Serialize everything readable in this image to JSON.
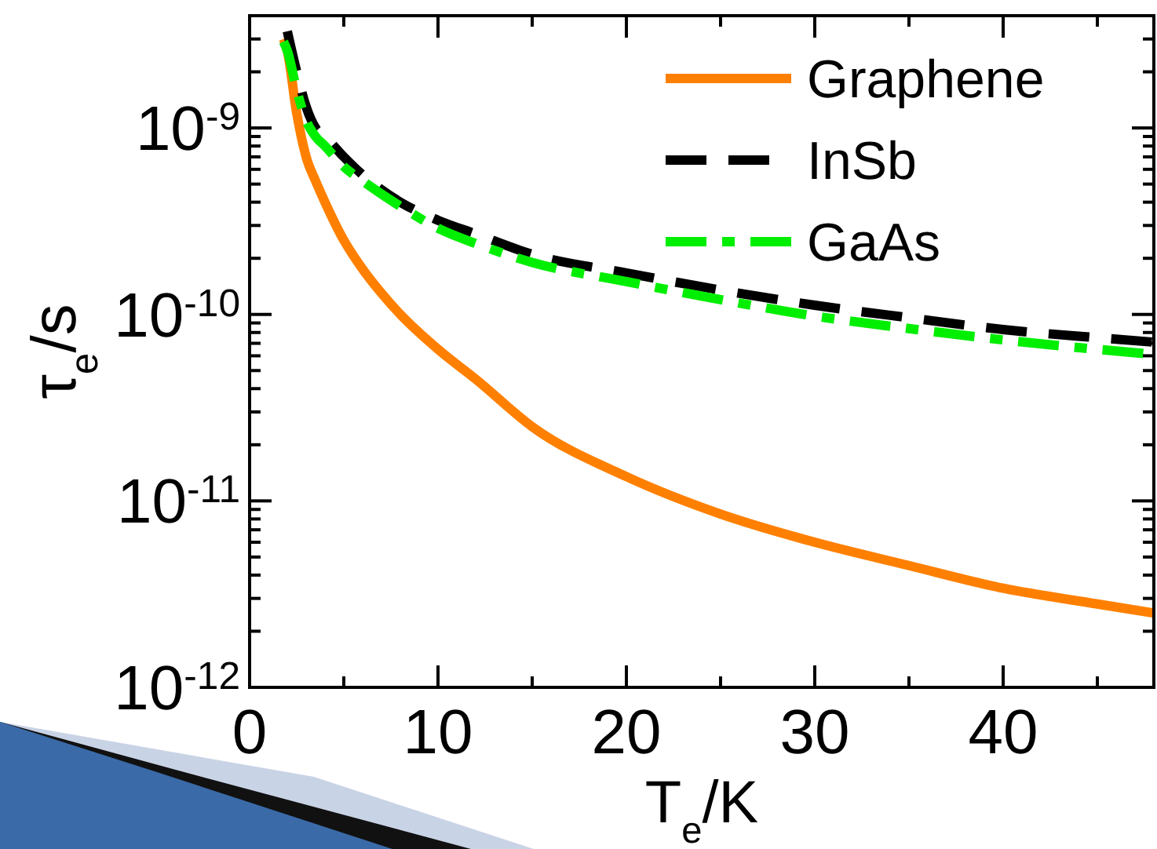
{
  "chart_data": {
    "type": "line",
    "xlabel": "T$_{e}$/K",
    "ylabel": "τ$_{e}$/s",
    "x": [
      1.8,
      2,
      2.5,
      3,
      3.5,
      4,
      5,
      6,
      7,
      8,
      10,
      12,
      15,
      20,
      25,
      30,
      35,
      40,
      45,
      48
    ],
    "series": [
      {
        "name": "Graphene",
        "color": "#ff8000",
        "line_style": "solid",
        "values": [
          3e-09,
          2.6e-09,
          1.2e-09,
          7e-10,
          5.2e-10,
          4e-10,
          2.5e-10,
          1.75e-10,
          1.3e-10,
          1e-10,
          6.5e-11,
          4.5e-11,
          2.5e-11,
          1.35e-11,
          8.5e-12,
          6e-12,
          4.5e-12,
          3.4e-12,
          2.8e-12,
          2.5e-12
        ]
      },
      {
        "name": "InSb",
        "color": "#000000",
        "line_style": "dashed",
        "x": [
          2,
          2.5,
          3,
          3.5,
          4,
          5,
          6,
          8,
          10,
          12,
          15,
          20,
          25,
          30,
          35,
          40,
          45,
          48
        ],
        "values": [
          3.3e-09,
          2e-09,
          1.3e-09,
          1e-09,
          9e-10,
          7e-10,
          5.6e-10,
          4e-10,
          3.2e-10,
          2.7e-10,
          2.1e-10,
          1.67e-10,
          1.35e-10,
          1.12e-10,
          9.6e-11,
          8.3e-11,
          7.5e-11,
          7.1e-11
        ]
      },
      {
        "name": "GaAs",
        "color": "#00ee00",
        "line_style": "dashdot",
        "x": [
          1.8,
          2,
          2.5,
          3,
          3.5,
          4,
          5,
          6,
          8,
          10,
          12,
          15,
          20,
          25,
          30,
          35,
          40,
          45,
          48
        ],
        "values": [
          2.9e-09,
          2.6e-09,
          1.6e-09,
          1.1e-09,
          9e-10,
          8e-10,
          6.2e-10,
          5.2e-10,
          3.8e-10,
          2.9e-10,
          2.4e-10,
          1.9e-10,
          1.5e-10,
          1.2e-10,
          9.8e-11,
          8.4e-11,
          7.3e-11,
          6.5e-11,
          6.1e-11
        ]
      }
    ],
    "log": "y",
    "legend": "top right",
    "grid": false,
    "xlim": [
      0,
      48
    ],
    "xticks": [
      0,
      {
        "value": 5,
        "label": null
      },
      10,
      {
        "value": 15,
        "label": null
      },
      20,
      {
        "value": 25,
        "label": null
      },
      30,
      {
        "value": 35,
        "label": null
      },
      40,
      {
        "value": 45,
        "label": null
      }
    ],
    "ylim": [
      1e-12,
      4e-09
    ],
    "yticks": [
      {
        "value": 1e-12,
        "label": "10$^{-12}$"
      },
      {
        "value": 2e-12,
        "label": null
      },
      {
        "value": 3e-12,
        "label": null
      },
      {
        "value": 4e-12,
        "label": null
      },
      {
        "value": 5e-12,
        "label": null
      },
      {
        "value": 6e-12,
        "label": null
      },
      {
        "value": 7e-12,
        "label": null
      },
      {
        "value": 8e-12,
        "label": null
      },
      {
        "value": 9e-12,
        "label": null
      },
      {
        "value": 1e-11,
        "label": "10$^{-11}$"
      },
      {
        "value": 2e-11,
        "label": null
      },
      {
        "value": 3e-11,
        "label": null
      },
      {
        "value": 4e-11,
        "label": null
      },
      {
        "value": 5e-11,
        "label": null
      },
      {
        "value": 6e-11,
        "label": null
      },
      {
        "value": 7e-11,
        "label": null
      },
      {
        "value": 8e-11,
        "label": null
      },
      {
        "value": 9e-11,
        "label": null
      },
      {
        "value": 1e-10,
        "label": "10$^{-10}$"
      },
      {
        "value": 2e-10,
        "label": null
      },
      {
        "value": 3e-10,
        "label": null
      },
      {
        "value": 4e-10,
        "label": null
      },
      {
        "value": 5e-10,
        "label": null
      },
      {
        "value": 6e-10,
        "label": null
      },
      {
        "value": 7e-10,
        "label": null
      },
      {
        "value": 8e-10,
        "label": null
      },
      {
        "value": 9e-10,
        "label": null
      },
      {
        "value": 1e-09,
        "label": "10$^{-9}$"
      },
      {
        "value": 2e-09,
        "label": null
      },
      {
        "value": 3e-09,
        "label": null
      },
      {
        "value": 4e-09,
        "label": null
      }
    ]
  }
}
